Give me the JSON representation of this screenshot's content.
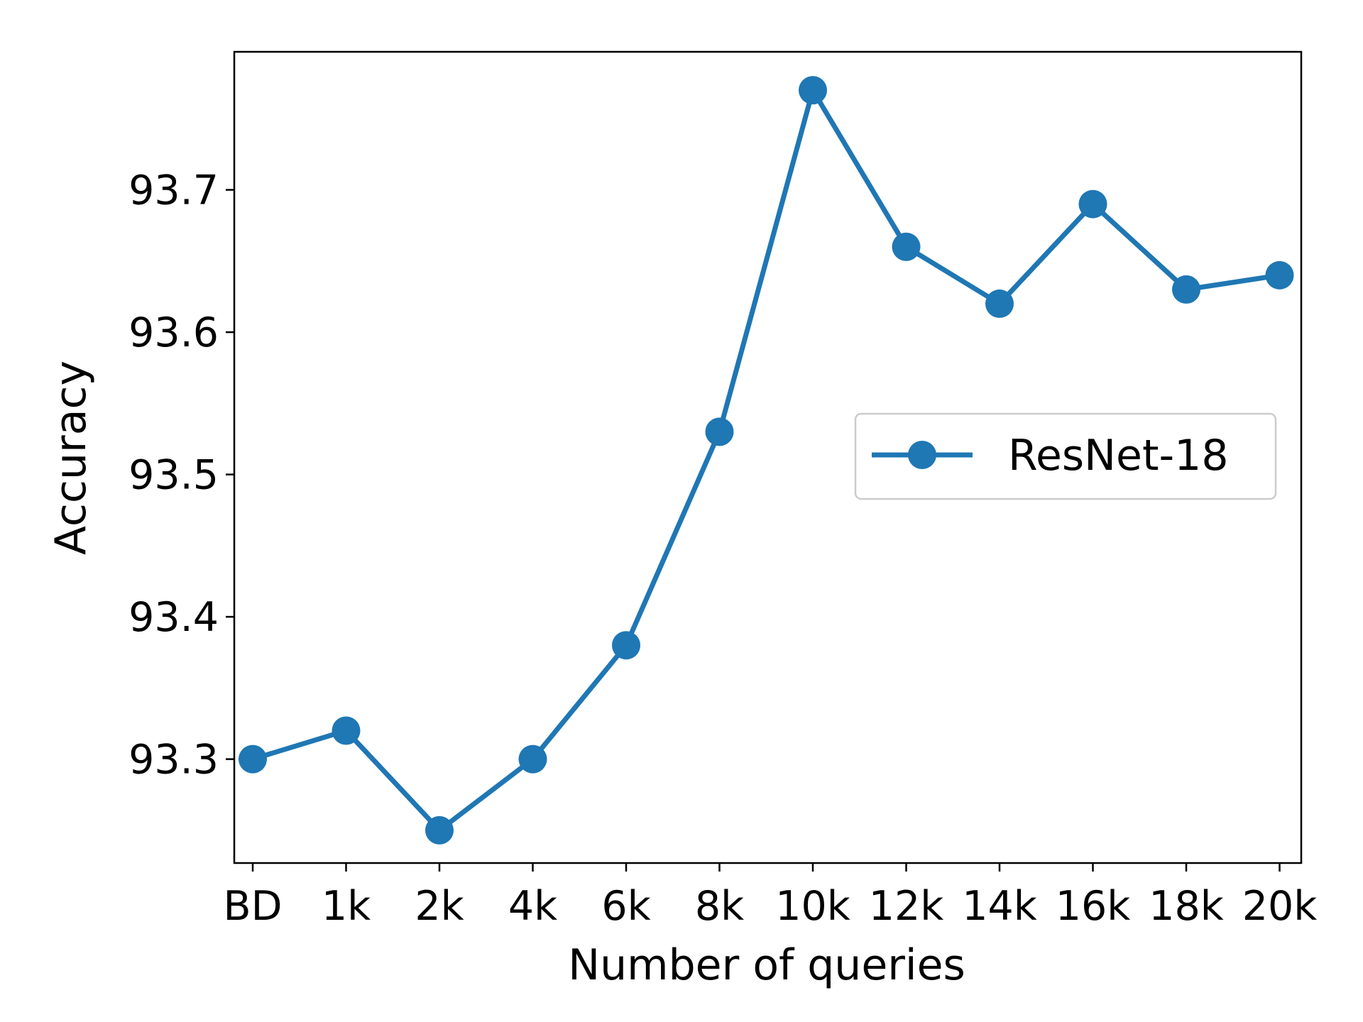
{
  "chart_data": {
    "type": "line",
    "title": "",
    "xlabel": "Number of queries",
    "ylabel": "Accuracy",
    "categories": [
      "BD",
      "1k",
      "2k",
      "4k",
      "6k",
      "8k",
      "10k",
      "12k",
      "14k",
      "16k",
      "18k",
      "20k"
    ],
    "series": [
      {
        "name": "ResNet-18",
        "values": [
          93.3,
          93.32,
          93.25,
          93.3,
          93.38,
          93.53,
          93.77,
          93.66,
          93.62,
          93.69,
          93.63,
          93.64
        ],
        "color": "#1f77b4",
        "marker": "circle"
      }
    ],
    "ylim": [
      93.227,
      93.797
    ],
    "yticks": [
      93.3,
      93.4,
      93.5,
      93.6,
      93.7
    ],
    "ytick_labels": [
      "93.3",
      "93.4",
      "93.5",
      "93.6",
      "93.7"
    ],
    "grid": false,
    "legend_position": "center-right"
  }
}
